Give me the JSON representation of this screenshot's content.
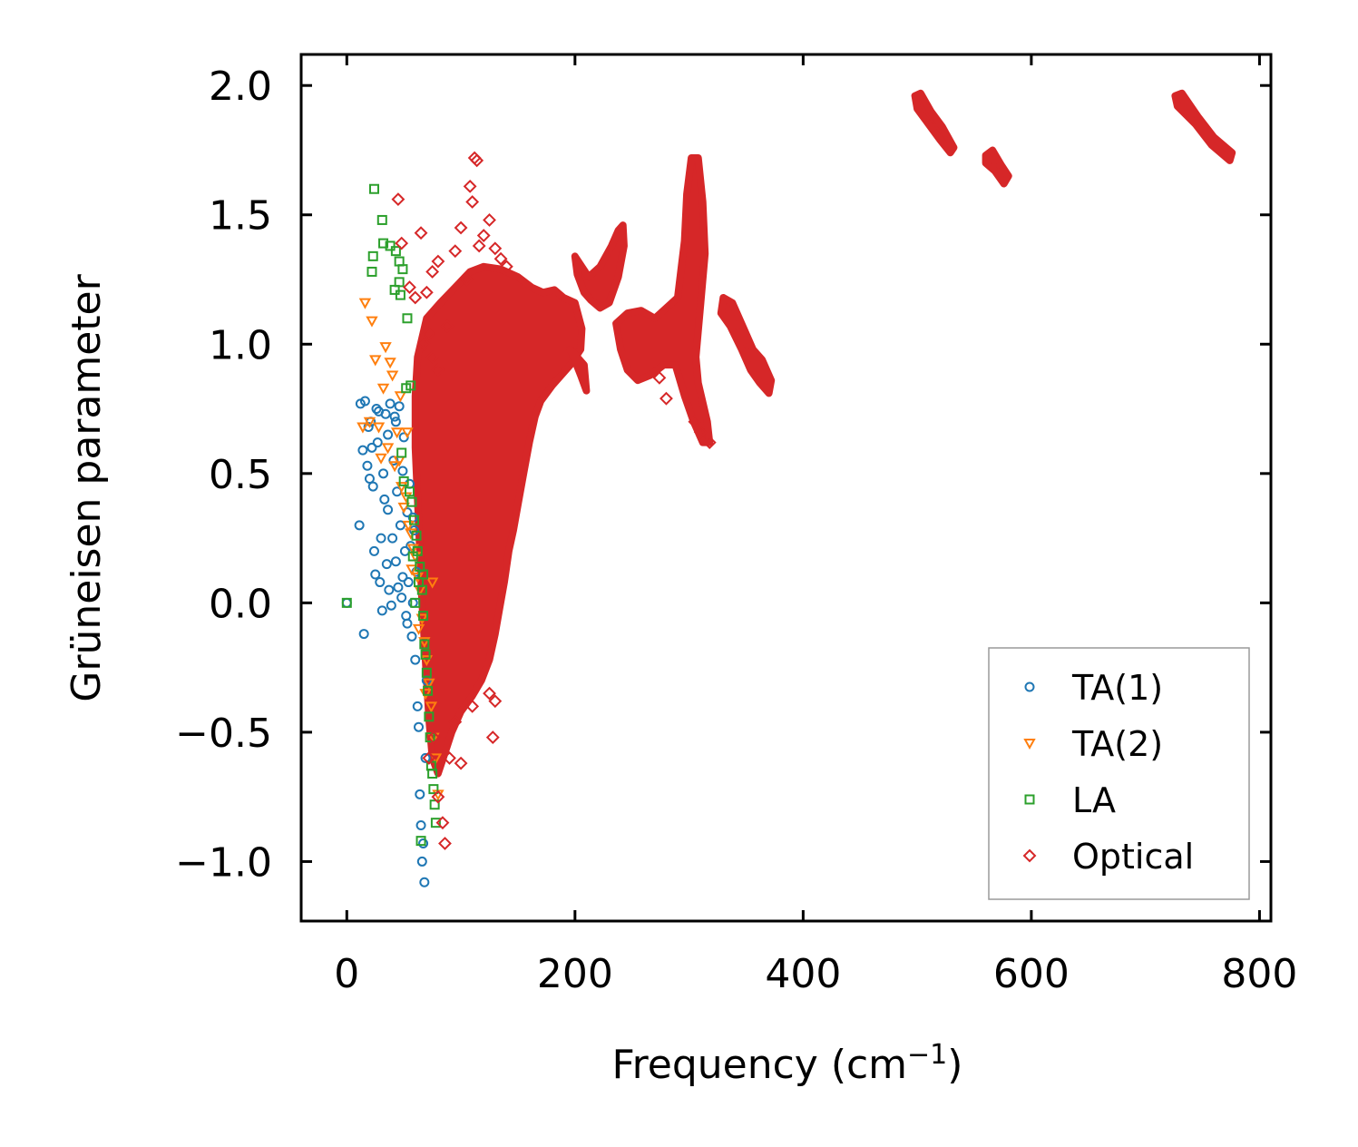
{
  "chart_data": {
    "type": "scatter",
    "title": "",
    "xlabel": "Frequency (cm",
    "xlabel_sup": "−1",
    "xlabel_end": ")",
    "ylabel": "Grüneisen parameter",
    "xlim": [
      -40,
      810
    ],
    "ylim": [
      -1.23,
      2.12
    ],
    "xticks": [
      0,
      200,
      400,
      600,
      800
    ],
    "xtick_labels": [
      "0",
      "200",
      "400",
      "600",
      "800"
    ],
    "yticks": [
      2.0,
      1.5,
      1.0,
      0.5,
      0.0,
      -0.5,
      -1.0
    ],
    "ytick_labels": [
      "2.0",
      "1.5",
      "1.0",
      "0.5",
      "0.0",
      "−0.5",
      "−1.0"
    ],
    "legend_position": "lower-right",
    "series": [
      {
        "name": "TA(1)",
        "marker": "circle",
        "color": "#1f77b4",
        "points": [
          [
            0,
            0.0
          ],
          [
            12,
            0.77
          ],
          [
            14,
            0.59
          ],
          [
            15,
            -0.12
          ],
          [
            16,
            0.78
          ],
          [
            18,
            0.53
          ],
          [
            20,
            0.48
          ],
          [
            21,
            0.7
          ],
          [
            22,
            0.6
          ],
          [
            24,
            0.2
          ],
          [
            25,
            0.11
          ],
          [
            26,
            0.75
          ],
          [
            27,
            0.62
          ],
          [
            28,
            0.74
          ],
          [
            29,
            0.08
          ],
          [
            30,
            0.25
          ],
          [
            31,
            -0.03
          ],
          [
            32,
            0.5
          ],
          [
            33,
            0.4
          ],
          [
            34,
            0.73
          ],
          [
            35,
            0.15
          ],
          [
            36,
            0.36
          ],
          [
            37,
            0.05
          ],
          [
            38,
            0.77
          ],
          [
            39,
            -0.01
          ],
          [
            40,
            0.25
          ],
          [
            41,
            0.55
          ],
          [
            42,
            0.72
          ],
          [
            43,
            0.16
          ],
          [
            44,
            0.43
          ],
          [
            45,
            0.06
          ],
          [
            46,
            0.76
          ],
          [
            47,
            0.3
          ],
          [
            48,
            0.02
          ],
          [
            49,
            0.51
          ],
          [
            50,
            0.64
          ],
          [
            51,
            0.2
          ],
          [
            52,
            -0.05
          ],
          [
            53,
            0.35
          ],
          [
            54,
            0.08
          ],
          [
            55,
            0.46
          ],
          [
            56,
            0.22
          ],
          [
            57,
            -0.13
          ],
          [
            58,
            0.0
          ],
          [
            59,
            0.28
          ],
          [
            60,
            -0.22
          ],
          [
            61,
            0.12
          ],
          [
            62,
            -0.4
          ],
          [
            63,
            -0.48
          ],
          [
            64,
            -0.74
          ],
          [
            65,
            -0.86
          ],
          [
            66,
            -1.0
          ],
          [
            67,
            -0.93
          ],
          [
            68,
            -1.08
          ],
          [
            69,
            -0.6
          ],
          [
            70,
            -0.3
          ],
          [
            11,
            0.3
          ],
          [
            19,
            0.68
          ],
          [
            23,
            0.45
          ],
          [
            36,
            0.65
          ],
          [
            43,
            0.7
          ],
          [
            49,
            0.1
          ],
          [
            53,
            -0.08
          ],
          [
            58,
            0.33
          ]
        ]
      },
      {
        "name": "TA(2)",
        "marker": "triangle-down",
        "color": "#ff7f0e",
        "points": [
          [
            14,
            0.68
          ],
          [
            16,
            1.16
          ],
          [
            20,
            0.7
          ],
          [
            22,
            1.09
          ],
          [
            25,
            0.94
          ],
          [
            28,
            0.68
          ],
          [
            30,
            0.56
          ],
          [
            32,
            0.83
          ],
          [
            34,
            0.99
          ],
          [
            36,
            0.6
          ],
          [
            38,
            0.93
          ],
          [
            40,
            0.88
          ],
          [
            42,
            0.53
          ],
          [
            44,
            0.66
          ],
          [
            46,
            0.55
          ],
          [
            48,
            0.45
          ],
          [
            50,
            0.37
          ],
          [
            52,
            0.41
          ],
          [
            54,
            0.3
          ],
          [
            56,
            0.27
          ],
          [
            58,
            0.21
          ],
          [
            60,
            0.18
          ],
          [
            62,
            0.1
          ],
          [
            64,
            0.05
          ],
          [
            66,
            -0.06
          ],
          [
            68,
            -0.15
          ],
          [
            70,
            -0.22
          ],
          [
            72,
            -0.31
          ],
          [
            74,
            -0.4
          ],
          [
            76,
            -0.52
          ],
          [
            78,
            -0.6
          ],
          [
            80,
            -0.74
          ],
          [
            47,
            0.8
          ],
          [
            53,
            0.66
          ],
          [
            57,
            0.13
          ],
          [
            63,
            -0.1
          ],
          [
            69,
            -0.35
          ],
          [
            75,
            0.08
          ]
        ]
      },
      {
        "name": "LA",
        "marker": "square",
        "color": "#2ca02c",
        "points": [
          [
            0,
            0.0
          ],
          [
            24,
            1.6
          ],
          [
            23,
            1.34
          ],
          [
            22,
            1.28
          ],
          [
            31,
            1.48
          ],
          [
            32,
            1.39
          ],
          [
            38,
            1.38
          ],
          [
            43,
            1.36
          ],
          [
            46,
            1.32
          ],
          [
            49,
            1.29
          ],
          [
            42,
            1.21
          ],
          [
            46,
            1.24
          ],
          [
            47,
            1.19
          ],
          [
            53,
            1.1
          ],
          [
            52,
            0.83
          ],
          [
            56,
            0.84
          ],
          [
            48,
            0.58
          ],
          [
            50,
            0.47
          ],
          [
            55,
            0.43
          ],
          [
            57,
            0.39
          ],
          [
            59,
            0.32
          ],
          [
            61,
            0.26
          ],
          [
            62,
            0.2
          ],
          [
            64,
            0.14
          ],
          [
            66,
            0.05
          ],
          [
            67,
            -0.05
          ],
          [
            68,
            -0.16
          ],
          [
            69,
            -0.2
          ],
          [
            70,
            -0.27
          ],
          [
            71,
            -0.34
          ],
          [
            72,
            -0.44
          ],
          [
            73,
            -0.52
          ],
          [
            74,
            -0.63
          ],
          [
            75,
            -0.66
          ],
          [
            76,
            -0.72
          ],
          [
            77,
            -0.78
          ],
          [
            78,
            -0.85
          ],
          [
            65,
            -0.92
          ],
          [
            58,
            0.18
          ],
          [
            60,
            0.0
          ],
          [
            63,
            0.08
          ],
          [
            67,
            0.11
          ]
        ]
      },
      {
        "name": "Optical",
        "marker": "diamond",
        "color": "#d62728",
        "points": [
          [
            45,
            1.56
          ],
          [
            48,
            1.39
          ],
          [
            55,
            1.22
          ],
          [
            60,
            1.18
          ],
          [
            65,
            1.43
          ],
          [
            70,
            1.2
          ],
          [
            75,
            1.28
          ],
          [
            80,
            1.32
          ],
          [
            88,
            1.07
          ],
          [
            95,
            1.36
          ],
          [
            100,
            1.45
          ],
          [
            105,
            1.25
          ],
          [
            108,
            1.61
          ],
          [
            110,
            1.55
          ],
          [
            112,
            1.72
          ],
          [
            114,
            1.71
          ],
          [
            116,
            1.38
          ],
          [
            120,
            1.42
          ],
          [
            125,
            1.48
          ],
          [
            130,
            1.37
          ],
          [
            135,
            1.33
          ],
          [
            140,
            1.3
          ],
          [
            68,
            1.0
          ],
          [
            72,
            1.04
          ],
          [
            75,
            0.95
          ],
          [
            80,
            0.9
          ],
          [
            72,
            -0.6
          ],
          [
            76,
            -0.52
          ],
          [
            80,
            -0.75
          ],
          [
            84,
            -0.85
          ],
          [
            86,
            -0.93
          ],
          [
            90,
            -0.6
          ],
          [
            95,
            -0.46
          ],
          [
            100,
            -0.62
          ],
          [
            110,
            -0.4
          ],
          [
            128,
            -0.52
          ],
          [
            125,
            -0.35
          ],
          [
            130,
            -0.38
          ],
          [
            280,
            0.79
          ],
          [
            274,
            0.87
          ],
          [
            318,
            0.62
          ],
          [
            310,
            0.66
          ],
          [
            305,
            0.7
          ]
        ]
      }
    ],
    "dense_regions": [
      {
        "polygon": [
          [
            62,
            0.95
          ],
          [
            70,
            1.1
          ],
          [
            82,
            1.16
          ],
          [
            95,
            1.22
          ],
          [
            108,
            1.28
          ],
          [
            120,
            1.3
          ],
          [
            135,
            1.29
          ],
          [
            150,
            1.26
          ],
          [
            162,
            1.22
          ],
          [
            172,
            1.2
          ],
          [
            182,
            1.21
          ],
          [
            190,
            1.18
          ],
          [
            200,
            1.16
          ],
          [
            206,
            1.06
          ],
          [
            205,
            0.98
          ],
          [
            196,
            0.92
          ],
          [
            180,
            0.84
          ],
          [
            170,
            0.78
          ],
          [
            165,
            0.72
          ],
          [
            160,
            0.62
          ],
          [
            155,
            0.5
          ],
          [
            150,
            0.38
          ],
          [
            146,
            0.28
          ],
          [
            142,
            0.2
          ],
          [
            138,
            0.08
          ],
          [
            134,
            -0.02
          ],
          [
            130,
            -0.12
          ],
          [
            125,
            -0.22
          ],
          [
            118,
            -0.3
          ],
          [
            110,
            -0.36
          ],
          [
            100,
            -0.42
          ],
          [
            92,
            -0.5
          ],
          [
            86,
            -0.58
          ],
          [
            80,
            -0.66
          ],
          [
            75,
            -0.6
          ],
          [
            72,
            -0.45
          ],
          [
            70,
            -0.3
          ],
          [
            68,
            -0.15
          ],
          [
            66,
            0.0
          ],
          [
            64,
            0.2
          ],
          [
            62,
            0.4
          ],
          [
            60,
            0.6
          ],
          [
            60,
            0.8
          ]
        ]
      },
      {
        "polygon": [
          [
            200,
            1.34
          ],
          [
            212,
            1.26
          ],
          [
            222,
            1.3
          ],
          [
            232,
            1.38
          ],
          [
            238,
            1.44
          ],
          [
            242,
            1.46
          ],
          [
            243,
            1.38
          ],
          [
            238,
            1.26
          ],
          [
            230,
            1.16
          ],
          [
            222,
            1.14
          ],
          [
            214,
            1.17
          ],
          [
            208,
            1.2
          ],
          [
            202,
            1.27
          ]
        ]
      },
      {
        "polygon": [
          [
            196,
            0.98
          ],
          [
            205,
            0.88
          ],
          [
            210,
            0.82
          ],
          [
            208,
            0.92
          ]
        ]
      },
      {
        "polygon": [
          [
            236,
            1.08
          ],
          [
            246,
            1.12
          ],
          [
            258,
            1.13
          ],
          [
            270,
            1.1
          ],
          [
            280,
            1.14
          ],
          [
            290,
            1.18
          ],
          [
            296,
            1.4
          ],
          [
            298,
            1.58
          ],
          [
            302,
            1.72
          ],
          [
            308,
            1.72
          ],
          [
            312,
            1.55
          ],
          [
            314,
            1.35
          ],
          [
            310,
            1.15
          ],
          [
            306,
            0.95
          ],
          [
            308,
            0.85
          ],
          [
            316,
            0.7
          ],
          [
            318,
            0.62
          ],
          [
            312,
            0.62
          ],
          [
            304,
            0.7
          ],
          [
            296,
            0.8
          ],
          [
            288,
            0.92
          ],
          [
            278,
            0.92
          ],
          [
            266,
            0.88
          ],
          [
            255,
            0.86
          ],
          [
            246,
            0.9
          ],
          [
            240,
            0.98
          ]
        ]
      },
      {
        "polygon": [
          [
            330,
            1.18
          ],
          [
            338,
            1.16
          ],
          [
            348,
            1.06
          ],
          [
            356,
            0.98
          ],
          [
            364,
            0.94
          ],
          [
            372,
            0.86
          ],
          [
            370,
            0.81
          ],
          [
            362,
            0.85
          ],
          [
            354,
            0.9
          ],
          [
            346,
            0.98
          ],
          [
            336,
            1.07
          ],
          [
            328,
            1.12
          ]
        ]
      },
      {
        "polygon": [
          [
            498,
            1.96
          ],
          [
            503,
            1.97
          ],
          [
            512,
            1.9
          ],
          [
            522,
            1.84
          ],
          [
            532,
            1.76
          ],
          [
            529,
            1.74
          ],
          [
            520,
            1.79
          ],
          [
            510,
            1.85
          ],
          [
            500,
            1.91
          ]
        ]
      },
      {
        "polygon": [
          [
            560,
            1.73
          ],
          [
            566,
            1.75
          ],
          [
            574,
            1.69
          ],
          [
            580,
            1.65
          ],
          [
            576,
            1.62
          ],
          [
            568,
            1.67
          ],
          [
            560,
            1.7
          ]
        ]
      },
      {
        "polygon": [
          [
            726,
            1.96
          ],
          [
            732,
            1.97
          ],
          [
            746,
            1.88
          ],
          [
            760,
            1.8
          ],
          [
            776,
            1.74
          ],
          [
            774,
            1.71
          ],
          [
            758,
            1.77
          ],
          [
            744,
            1.85
          ],
          [
            728,
            1.92
          ]
        ]
      }
    ]
  }
}
